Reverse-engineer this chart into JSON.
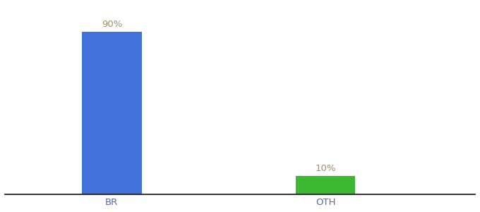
{
  "categories": [
    "BR",
    "OTH"
  ],
  "values": [
    90,
    10
  ],
  "bar_colors": [
    "#4472db",
    "#3db832"
  ],
  "label_texts": [
    "90%",
    "10%"
  ],
  "label_color": "#a09060",
  "background_color": "#ffffff",
  "xlabel_color": "#5566bb",
  "bar_width": 0.28,
  "ylim": [
    0,
    105
  ],
  "label_fontsize": 9.5,
  "tick_fontsize": 9.5,
  "spine_color": "#111111",
  "x_positions": [
    1,
    2
  ],
  "xlim": [
    0.5,
    2.7
  ]
}
